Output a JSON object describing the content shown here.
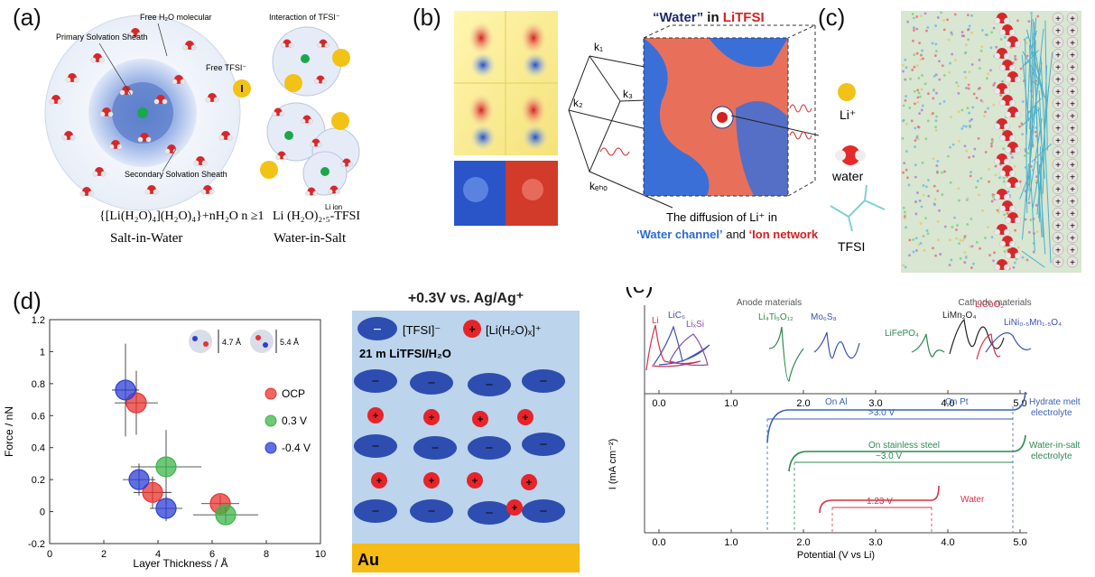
{
  "labels": {
    "a": "(a)",
    "b": "(b)",
    "c": "(c)",
    "d": "(d)",
    "e": "(e)"
  },
  "panel_a": {
    "free_water": "Free H₂O molecular",
    "primary_sheath": "Primary Solvation Sheath",
    "free_tfsi": "Free TFSI⁻",
    "secondary_sheath": "Secondary Solvation Sheath",
    "interaction": "Interaction of TFSI⁻",
    "li_ion": "Li ion",
    "formula_left": "{[Li(H₂O)₄](H₂O)₄}+nH₂O n ≥1",
    "name_left": "Salt-in-Water",
    "formula_right": "Li (H₂O)₂.₅-TFSI",
    "name_right": "Water-in-Salt"
  },
  "panel_b": {
    "title_water": "“Water”",
    "title_in": " in ",
    "title_salt": "LiTFSI",
    "k1": "k₁",
    "k2": "k₂",
    "k3": "k₃",
    "kecho": "kₑₕₒ",
    "caption1": "The diffusion of Li⁺ in",
    "caption_water_channel": "‘Water channel’",
    "caption_and": " and ",
    "caption_ion_network": "‘Ion network’"
  },
  "panel_c": {
    "li": "Li⁺",
    "water": "water",
    "tfsi": "TFSI"
  },
  "panel_d": {
    "chart_data": {
      "type": "scatter",
      "xlabel": "Layer Thickness  / Å",
      "ylabel": "Force / nN",
      "xlim": [
        0,
        10
      ],
      "ylim": [
        -0.2,
        1.2
      ],
      "xticks": [
        "0",
        "2",
        "4",
        "6",
        "8",
        "10"
      ],
      "yticks": [
        "-0.2",
        "0",
        "0.2",
        "0.4",
        "0.6",
        "0.8",
        "1",
        "1.2"
      ],
      "size_labels": [
        "4.7 Å",
        "5.4 Å"
      ],
      "series": [
        {
          "name": "OCP",
          "color": "#e8322e",
          "points": [
            {
              "x": 3.2,
              "y": 0.68,
              "xerr": 0.8,
              "yerr": 0.2
            },
            {
              "x": 3.8,
              "y": 0.12,
              "xerr": 0.7,
              "yerr": 0.1
            },
            {
              "x": 6.3,
              "y": 0.05,
              "xerr": 0.7,
              "yerr": 0.05
            }
          ]
        },
        {
          "name": "0.3 V",
          "color": "#3cb64a",
          "points": [
            {
              "x": 4.3,
              "y": 0.28,
              "xerr": 1.3,
              "yerr": 0.23
            },
            {
              "x": 6.5,
              "y": -0.02,
              "xerr": 1.2,
              "yerr": 0.05
            }
          ]
        },
        {
          "name": "-0.4 V",
          "color": "#2e3fd6",
          "points": [
            {
              "x": 2.8,
              "y": 0.76,
              "xerr": 0.5,
              "yerr": 0.29
            },
            {
              "x": 3.3,
              "y": 0.2,
              "xerr": 0.6,
              "yerr": 0.1
            },
            {
              "x": 4.3,
              "y": 0.02,
              "xerr": 0.6,
              "yerr": 0.08
            }
          ]
        }
      ]
    },
    "schematic": {
      "title": "+0.3V vs. Ag/Ag⁺",
      "anion_label": "[TFSI]⁻",
      "cation_label": "[Li(H₂O)ₓ]⁺",
      "concentration": "21 m LiTFSI/H₂O",
      "electrode": "Au",
      "minus": "−",
      "plus": "+"
    }
  },
  "panel_e": {
    "anode_title": "Anode materials",
    "cathode_title": "Cathode materials",
    "materials": [
      "Li",
      "LiC₆",
      "LiₓSi",
      "Li₄Ti₅O₁₂",
      "Mo₆S₈",
      "LiFePO₄",
      "LiMn₂O₄",
      "LiCoO₂",
      "LiNi₀.₅Mn₁.₅O₄"
    ],
    "ylabel": "I (mA cm⁻²)",
    "xlabel": "Potential (V vs Li)",
    "xticks": [
      "0.0",
      "1.0",
      "2.0",
      "3.0",
      "4.0",
      "5.0"
    ],
    "on_al": "On Al",
    "on_pt": "On Pt",
    "gt3": ">3.0 V",
    "on_ss": "On stainless steel",
    "approx3": "~3.0 V",
    "v123": "1.23 V",
    "hydrate1": "Hydrate melt",
    "hydrate2": "electrolyte",
    "wis1": "Water-in-salt",
    "wis2": "electrolyte",
    "water": "Water"
  }
}
